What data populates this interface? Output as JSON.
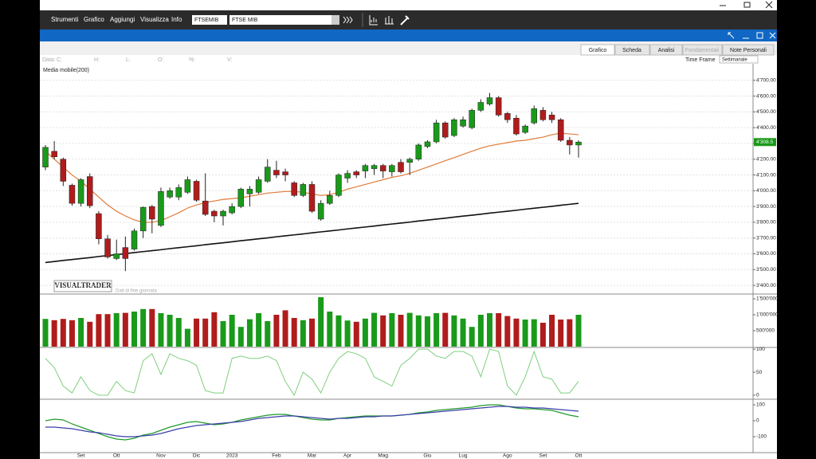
{
  "menu": [
    "Strumenti",
    "Grafico",
    "Aggiungi",
    "Visualizza",
    "Info"
  ],
  "symbol": {
    "code": "FTSEMIB",
    "name": "FTSE MIB"
  },
  "tabs": [
    "Grafico",
    "Scheda",
    "Analisi",
    "Fondamentali",
    "Note Personali"
  ],
  "time_frame": {
    "label": "Time Frame",
    "value": "Settimanale"
  },
  "info_row": [
    "Data:",
    "C:",
    "H:",
    "L:",
    "O:",
    "%:",
    "V:"
  ],
  "watermark": "VISUALTRADER",
  "watermark_note": "Dati di fine giornata",
  "chart_data": [
    {
      "type": "candlestick",
      "up_color": "#1a9a1a",
      "down_color": "#b01c1c",
      "grid": true,
      "categories": [
        null,
        null,
        null,
        null,
        "Set",
        null,
        null,
        null,
        "Ott",
        null,
        null,
        null,
        null,
        "Nov",
        null,
        null,
        null,
        "Dic",
        null,
        null,
        null,
        "2023",
        null,
        null,
        null,
        null,
        "Feb",
        null,
        null,
        null,
        "Mar",
        null,
        null,
        null,
        "Apr",
        null,
        null,
        null,
        "Mag",
        null,
        null,
        null,
        null,
        "Giu",
        null,
        null,
        null,
        "Lug",
        null,
        null,
        null,
        null,
        "Ago",
        null,
        null,
        null,
        "Set",
        null,
        null,
        null,
        "Ott"
      ],
      "open": [
        4150,
        4250,
        4200,
        4035,
        3920,
        4090,
        3855,
        3695,
        3570,
        3640,
        3630,
        3745,
        3900,
        3780,
        3960,
        3960,
        3990,
        4060,
        3935,
        3870,
        3840,
        3860,
        3900,
        3980,
        3990,
        4060,
        4130,
        4120,
        4050,
        3970,
        4040,
        3820,
        3920,
        3970,
        4080,
        4120,
        4125,
        4140,
        4160,
        4120,
        4180,
        4180,
        4200,
        4280,
        4310,
        4430,
        4350,
        4410,
        4400,
        4510,
        4550,
        4590,
        4490,
        4460,
        4370,
        4430,
        4510,
        4480,
        4450,
        4320,
        4290
      ],
      "high": [
        4290,
        4315,
        4210,
        4045,
        4080,
        4110,
        3870,
        3720,
        3690,
        3710,
        3760,
        3900,
        3910,
        4020,
        4020,
        4040,
        4090,
        4070,
        4110,
        3880,
        3880,
        3920,
        4020,
        4030,
        4090,
        4200,
        4190,
        4140,
        4060,
        4050,
        4060,
        3940,
        4000,
        4110,
        4130,
        4130,
        4170,
        4170,
        4170,
        4170,
        4200,
        4210,
        4300,
        4320,
        4450,
        4440,
        4460,
        4470,
        4520,
        4580,
        4620,
        4600,
        4500,
        4480,
        4420,
        4540,
        4530,
        4500,
        4460,
        4340,
        4320
      ],
      "low": [
        4130,
        4200,
        4030,
        3905,
        3900,
        3890,
        3660,
        3570,
        3560,
        3490,
        3620,
        3700,
        3730,
        3770,
        3950,
        3940,
        3980,
        3930,
        3840,
        3800,
        3780,
        3850,
        3890,
        3900,
        3980,
        4050,
        4080,
        4060,
        3960,
        3960,
        3860,
        3810,
        3910,
        3960,
        4050,
        4080,
        4080,
        4100,
        4080,
        4090,
        4110,
        4100,
        4190,
        4270,
        4300,
        4330,
        4340,
        4400,
        4390,
        4500,
        4540,
        4470,
        4430,
        4350,
        4360,
        4420,
        4440,
        4430,
        4310,
        4230,
        4210
      ],
      "close": [
        4275,
        4215,
        4060,
        3920,
        4070,
        3905,
        3695,
        3580,
        3600,
        3570,
        3745,
        3895,
        3820,
        3995,
        4000,
        4020,
        4070,
        3940,
        3850,
        3840,
        3870,
        3900,
        4010,
        4010,
        4070,
        4150,
        4100,
        4100,
        3970,
        4040,
        3870,
        3920,
        3970,
        4100,
        4110,
        4100,
        4160,
        4160,
        4125,
        4160,
        4120,
        4200,
        4290,
        4310,
        4430,
        4340,
        4450,
        4450,
        4510,
        4560,
        4590,
        4480,
        4450,
        4360,
        4410,
        4520,
        4450,
        4450,
        4320,
        4290,
        4308.5
      ],
      "last_label": "4'308.5",
      "lines": [
        {
          "color": "#e07b39",
          "values": [
            4250,
            4200,
            4150,
            4100,
            4060,
            4010,
            3960,
            3910,
            3870,
            3840,
            3815,
            3800,
            3800,
            3810,
            3835,
            3860,
            3890,
            3910,
            3925,
            3935,
            3945,
            3950,
            3955,
            3965,
            3975,
            3985,
            3990,
            3995,
            3995,
            3990,
            3980,
            3970,
            3975,
            3990,
            4010,
            4025,
            4040,
            4055,
            4070,
            4085,
            4095,
            4110,
            4130,
            4150,
            4170,
            4190,
            4210,
            4230,
            4250,
            4270,
            4285,
            4295,
            4305,
            4315,
            4320,
            4330,
            4340,
            4355,
            4365,
            4360,
            4355
          ]
        },
        {
          "name": "Media mobile(200)",
          "color": "#111111",
          "values": [
            3545,
            3551,
            3558,
            3564,
            3570,
            3576,
            3583,
            3589,
            3595,
            3601,
            3608,
            3614,
            3620,
            3626,
            3633,
            3639,
            3645,
            3651,
            3658,
            3664,
            3670,
            3676,
            3683,
            3689,
            3695,
            3701,
            3708,
            3714,
            3720,
            3726,
            3733,
            3739,
            3745,
            3751,
            3758,
            3764,
            3770,
            3776,
            3783,
            3789,
            3795,
            3801,
            3808,
            3814,
            3820,
            3826,
            3833,
            3839,
            3845,
            3851,
            3858,
            3864,
            3870,
            3876,
            3883,
            3889,
            3895,
            3901,
            3908,
            3914,
            3920
          ]
        }
      ],
      "ylim": [
        3350,
        4800
      ],
      "yticks": [
        {
          "value": 3400,
          "label": "3'400.00"
        },
        {
          "value": 3500,
          "label": "3'500.00"
        },
        {
          "value": 3600,
          "label": "3'600.00"
        },
        {
          "value": 3700,
          "label": "3'700.00"
        },
        {
          "value": 3800,
          "label": "3'800.00"
        },
        {
          "value": 3900,
          "label": "3'900.00"
        },
        {
          "value": 4000,
          "label": "4'000.00"
        },
        {
          "value": 4100,
          "label": "4'100.00"
        },
        {
          "value": 4200,
          "label": "4'200.00"
        },
        {
          "value": 4300,
          "label": "4'300.00"
        },
        {
          "value": 4400,
          "label": "4'400.00"
        },
        {
          "value": 4500,
          "label": "4'500.00"
        },
        {
          "value": 4600,
          "label": "4'600.00"
        },
        {
          "value": 4700,
          "label": "4'700.00"
        }
      ]
    },
    {
      "type": "bar",
      "values": [
        870000,
        830000,
        870000,
        830000,
        900000,
        780000,
        1020000,
        1020000,
        1050000,
        1060000,
        1100000,
        1180000,
        1180000,
        1050000,
        1000000,
        900000,
        560000,
        880000,
        880000,
        1080000,
        800000,
        1000000,
        620000,
        860000,
        1050000,
        800000,
        1000000,
        1140000,
        900000,
        830000,
        880000,
        1550000,
        1100000,
        980000,
        820000,
        780000,
        880000,
        1060000,
        980000,
        1050000,
        1000000,
        1060000,
        980000,
        950000,
        1050000,
        1060000,
        980000,
        880000,
        620000,
        1000000,
        1050000,
        1050000,
        960000,
        880000,
        850000,
        860000,
        750000,
        1000000,
        850000,
        860000,
        1000000
      ],
      "ylim": [
        0,
        1625000
      ],
      "yticks": [
        {
          "value": 500000,
          "label": "500'000"
        },
        {
          "value": 1000000,
          "label": "1'000'000"
        },
        {
          "value": 1500000,
          "label": "1'500'000"
        }
      ]
    },
    {
      "type": "line",
      "color": "#7fcf7f",
      "values": [
        80,
        60,
        20,
        5,
        40,
        10,
        0,
        0,
        30,
        10,
        5,
        75,
        90,
        45,
        90,
        80,
        75,
        65,
        10,
        5,
        5,
        80,
        85,
        80,
        80,
        85,
        75,
        30,
        0,
        50,
        35,
        5,
        50,
        80,
        95,
        90,
        80,
        40,
        30,
        20,
        65,
        80,
        100,
        100,
        85,
        80,
        95,
        95,
        85,
        40,
        100,
        95,
        20,
        0,
        40,
        95,
        40,
        35,
        5,
        5,
        30
      ],
      "ylim": [
        -7,
        102
      ],
      "yticks": [
        0,
        50,
        100
      ]
    },
    {
      "type": "line",
      "series": [
        {
          "color": "#1f9a2a",
          "values": [
            0,
            10,
            5,
            -20,
            -40,
            -60,
            -80,
            -100,
            -115,
            -120,
            -110,
            -90,
            -80,
            -60,
            -40,
            -25,
            -10,
            -5,
            -15,
            -25,
            -20,
            -10,
            5,
            15,
            25,
            35,
            40,
            40,
            30,
            20,
            10,
            5,
            5,
            15,
            20,
            25,
            30,
            30,
            30,
            30,
            35,
            40,
            50,
            55,
            65,
            70,
            75,
            80,
            85,
            95,
            100,
            100,
            90,
            80,
            75,
            75,
            70,
            65,
            50,
            35,
            25
          ]
        },
        {
          "color": "#3b3fa8",
          "values": [
            -40,
            -40,
            -45,
            -50,
            -60,
            -70,
            -75,
            -85,
            -95,
            -100,
            -100,
            -95,
            -90,
            -80,
            -65,
            -50,
            -40,
            -30,
            -25,
            -20,
            -15,
            -10,
            -5,
            5,
            15,
            20,
            25,
            30,
            30,
            25,
            20,
            15,
            10,
            15,
            15,
            20,
            25,
            25,
            30,
            30,
            35,
            40,
            45,
            50,
            55,
            60,
            65,
            70,
            75,
            80,
            85,
            90,
            90,
            85,
            85,
            80,
            80,
            75,
            70,
            65,
            60
          ]
        }
      ],
      "ylim": [
        -200,
        130
      ],
      "yticks": [
        -100,
        0,
        100
      ]
    }
  ]
}
